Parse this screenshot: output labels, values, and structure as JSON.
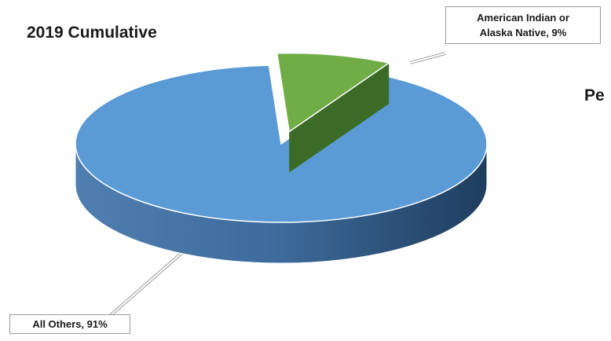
{
  "chart_data": {
    "type": "pie",
    "three_d": true,
    "title": "2019 Cumulative",
    "clipped_text": "Pe",
    "slices": [
      {
        "label": "American Indian or Alaska Native",
        "label_lines": [
          "American Indian or",
          "Alaska Native, 9%"
        ],
        "value": 9,
        "color": "#70ad47",
        "exploded": true
      },
      {
        "label": "All Others",
        "label_lines": [
          "All Others, 91%"
        ],
        "value": 91,
        "color": "#5b9bd5",
        "exploded": false
      }
    ]
  }
}
